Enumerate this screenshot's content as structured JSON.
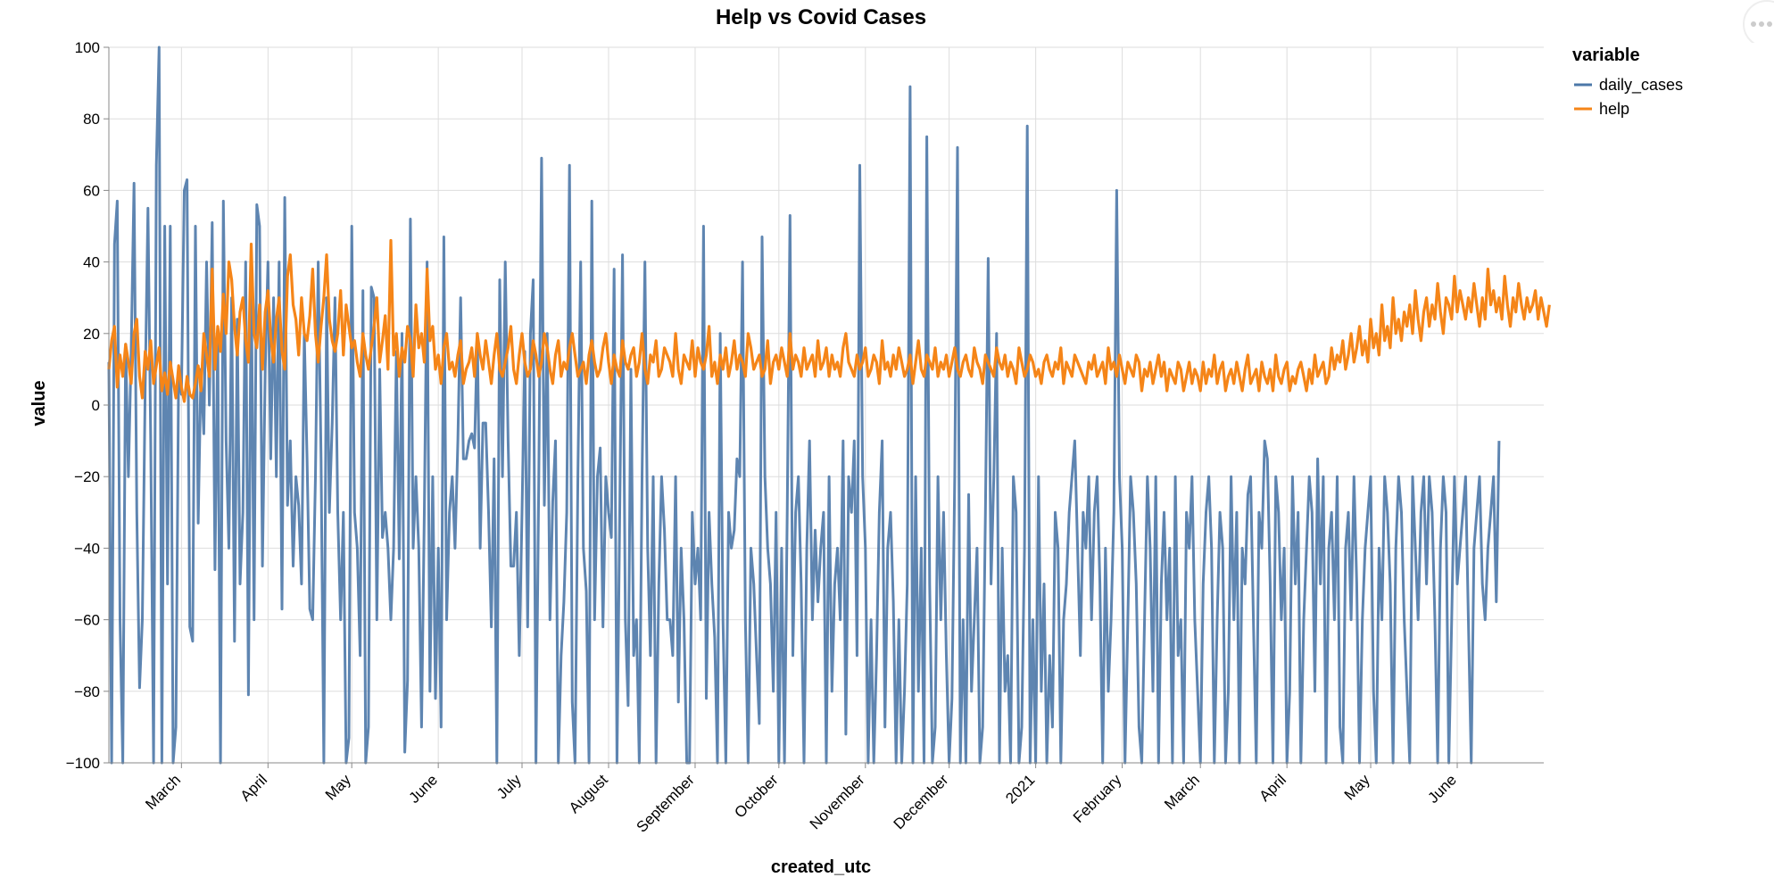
{
  "chart_data": {
    "type": "line",
    "title": "Help vs Covid Cases",
    "xlabel": "created_utc",
    "ylabel": "value",
    "ylim": [
      -100,
      100
    ],
    "yticks": [
      -100,
      -80,
      -60,
      -40,
      -20,
      0,
      20,
      40,
      60,
      80,
      100
    ],
    "xlim": [
      "2020-02-04",
      "2021-07-02"
    ],
    "xticks": [
      {
        "date": "2020-03-01",
        "label": "March"
      },
      {
        "date": "2020-04-01",
        "label": "April"
      },
      {
        "date": "2020-05-01",
        "label": "May"
      },
      {
        "date": "2020-06-01",
        "label": "June"
      },
      {
        "date": "2020-07-01",
        "label": "July"
      },
      {
        "date": "2020-08-01",
        "label": "August"
      },
      {
        "date": "2020-09-01",
        "label": "September"
      },
      {
        "date": "2020-10-01",
        "label": "October"
      },
      {
        "date": "2020-11-01",
        "label": "November"
      },
      {
        "date": "2020-12-01",
        "label": "December"
      },
      {
        "date": "2021-01-01",
        "label": "2021"
      },
      {
        "date": "2021-02-01",
        "label": "February"
      },
      {
        "date": "2021-03-01",
        "label": "March"
      },
      {
        "date": "2021-04-01",
        "label": "April"
      },
      {
        "date": "2021-05-01",
        "label": "May"
      },
      {
        "date": "2021-06-01",
        "label": "June"
      }
    ],
    "grid": true,
    "legend": {
      "title": "variable",
      "placement": "top-right"
    },
    "series": [
      {
        "name": "daily_cases",
        "color": "#4c78a8",
        "start": "2020-02-04",
        "step_days": 1,
        "values": [
          12,
          -100,
          45,
          57,
          -60,
          -100,
          17,
          -20,
          15,
          62,
          -30,
          -79,
          -60,
          5,
          55,
          -10,
          -100,
          67,
          100,
          -100,
          50,
          -50,
          50,
          -100,
          -90,
          10,
          3,
          60,
          63,
          -62,
          -66,
          50,
          -33,
          10,
          -8,
          40,
          0,
          51,
          -46,
          20,
          -100,
          57,
          -10,
          -40,
          30,
          -66,
          24,
          -50,
          -30,
          40,
          -81,
          40,
          -60,
          56,
          50,
          -45,
          10,
          40,
          -15,
          30,
          -20,
          40,
          -57,
          58,
          -28,
          -10,
          -45,
          -20,
          -28,
          -50,
          20,
          -15,
          -57,
          -60,
          -20,
          40,
          -15,
          -100,
          30,
          -30,
          -5,
          30,
          -30,
          -60,
          -30,
          -100,
          -93,
          50,
          -30,
          -40,
          -70,
          32,
          -100,
          -90,
          33,
          30,
          -60,
          10,
          -37,
          -30,
          -40,
          -60,
          -40,
          15,
          -43,
          20,
          -97,
          -77,
          52,
          -40,
          -20,
          -40,
          -90,
          -30,
          40,
          -80,
          -20,
          -82,
          -40,
          -90,
          47,
          -60,
          -30,
          -20,
          -40,
          -10,
          30,
          -15,
          -15,
          -10,
          -8,
          -12,
          20,
          -40,
          -5,
          -5,
          -30,
          -62,
          -15,
          -100,
          35,
          -20,
          40,
          -10,
          -45,
          -45,
          -30,
          -70,
          -30,
          15,
          -62,
          20,
          35,
          -100,
          -20,
          69,
          -28,
          20,
          -60,
          -27,
          -10,
          -100,
          -70,
          -55,
          -30,
          67,
          -83,
          -100,
          -20,
          40,
          -40,
          -52,
          -100,
          57,
          -60,
          -20,
          -12,
          -62,
          -20,
          -30,
          -37,
          38,
          -100,
          -30,
          42,
          -60,
          -84,
          10,
          -70,
          -60,
          -100,
          -20,
          40,
          -40,
          -70,
          -20,
          -100,
          -50,
          -20,
          -35,
          -60,
          -60,
          -70,
          -20,
          -83,
          -40,
          -60,
          -100,
          -100,
          -30,
          -50,
          -40,
          -60,
          50,
          -82,
          -30,
          -50,
          -65,
          -100,
          20,
          -60,
          -100,
          -30,
          -40,
          -35,
          -15,
          -20,
          40,
          -60,
          -100,
          -40,
          -50,
          -70,
          -89,
          47,
          -20,
          -40,
          -50,
          -80,
          -30,
          -100,
          -40,
          -100,
          -30,
          53,
          -70,
          -30,
          -20,
          -50,
          -100,
          -40,
          -10,
          -60,
          -35,
          -55,
          -40,
          -30,
          -100,
          -20,
          -80,
          -50,
          -40,
          -60,
          -10,
          -92,
          -20,
          -30,
          -10,
          -70,
          67,
          -20,
          -40,
          -100,
          -60,
          -100,
          -70,
          -30,
          -10,
          -90,
          -40,
          -30,
          -55,
          -100,
          -60,
          -100,
          -80,
          -50,
          89,
          -100,
          -20,
          -80,
          -40,
          -100,
          75,
          -50,
          -100,
          -90,
          -20,
          -60,
          -30,
          -70,
          -100,
          -82,
          -20,
          72,
          -100,
          -60,
          -100,
          -25,
          -80,
          -60,
          -40,
          -100,
          -90,
          -30,
          41,
          -50,
          -20,
          20,
          -100,
          -40,
          -80,
          -70,
          -100,
          -20,
          -30,
          -100,
          -90,
          -40,
          78,
          -100,
          -60,
          -100,
          -20,
          -80,
          -50,
          -100,
          -70,
          -90,
          -30,
          -40,
          -100,
          -60,
          -50,
          -30,
          -20,
          -10,
          -40,
          -70,
          -30,
          -40,
          -20,
          -60,
          -30,
          -20,
          -50,
          -100,
          -40,
          -80,
          -60,
          -30,
          60,
          -20,
          -40,
          -100,
          -60,
          -20,
          -30,
          -50,
          -90,
          -100,
          -60,
          -20,
          -40,
          -80,
          -20,
          -100,
          -50,
          -30,
          -60,
          -40,
          -100,
          -20,
          -70,
          -60,
          -100,
          -30,
          -40,
          -20,
          -60,
          -80,
          -100,
          -50,
          -30,
          -20,
          -40,
          -100,
          -60,
          -30,
          -40,
          -100,
          -80,
          -20,
          -60,
          -30,
          -100,
          -40,
          -50,
          -25,
          -20,
          -60,
          -100,
          -30,
          -40,
          -10,
          -15,
          -50,
          -100,
          -20,
          -30,
          -60,
          -40,
          -100,
          -80,
          -20,
          -50,
          -30,
          -100,
          -60,
          -40,
          -20,
          -30,
          -80,
          -15,
          -50,
          -20,
          -100,
          -40,
          -30,
          -60,
          -20,
          -90,
          -100,
          -40,
          -30,
          -60,
          -20,
          -50,
          -100,
          -60,
          -40,
          -30,
          -20,
          -80,
          -100,
          -40,
          -60,
          -20,
          -30,
          -50,
          -100,
          -40,
          -20,
          -30,
          -60,
          -80,
          -100,
          -20,
          -40,
          -60,
          -30,
          -20,
          -50,
          -20,
          -30,
          -60,
          -100,
          -40,
          -20,
          -30,
          -100,
          -60,
          -20,
          -50,
          -40,
          -30,
          -20,
          -60,
          -100,
          -40,
          -30,
          -20,
          -50,
          -60,
          -40,
          -30,
          -20,
          -55,
          -10
        ]
      },
      {
        "name": "help",
        "color": "#f58518",
        "start": "2020-02-04",
        "step_days": 1,
        "values": [
          10,
          18,
          22,
          5,
          14,
          8,
          17,
          12,
          6,
          20,
          24,
          8,
          2,
          15,
          10,
          18,
          6,
          11,
          16,
          4,
          9,
          3,
          12,
          7,
          2,
          11,
          5,
          1,
          8,
          3,
          2,
          6,
          11,
          4,
          20,
          14,
          8,
          38,
          10,
          22,
          15,
          31,
          20,
          40,
          35,
          22,
          14,
          26,
          30,
          18,
          12,
          45,
          20,
          16,
          28,
          10,
          26,
          32,
          19,
          12,
          24,
          30,
          15,
          10,
          36,
          42,
          28,
          24,
          14,
          30,
          20,
          18,
          25,
          38,
          20,
          12,
          22,
          30,
          42,
          24,
          18,
          15,
          20,
          32,
          14,
          28,
          22,
          16,
          18,
          12,
          8,
          20,
          14,
          10,
          16,
          22,
          30,
          12,
          18,
          25,
          10,
          46,
          14,
          20,
          8,
          16,
          12,
          22,
          18,
          8,
          28,
          16,
          20,
          12,
          38,
          18,
          22,
          10,
          14,
          6,
          16,
          20,
          10,
          12,
          8,
          14,
          18,
          6,
          10,
          12,
          16,
          8,
          20,
          14,
          10,
          18,
          12,
          6,
          14,
          20,
          10,
          8,
          12,
          16,
          22,
          10,
          6,
          14,
          20,
          12,
          8,
          10,
          18,
          14,
          8,
          12,
          20,
          16,
          10,
          6,
          14,
          18,
          8,
          12,
          10,
          16,
          20,
          14,
          8,
          10,
          12,
          6,
          14,
          18,
          12,
          8,
          10,
          16,
          20,
          12,
          6,
          14,
          10,
          8,
          18,
          12,
          10,
          14,
          16,
          8,
          12,
          20,
          10,
          6,
          14,
          12,
          18,
          8,
          10,
          16,
          14,
          12,
          8,
          20,
          10,
          6,
          14,
          12,
          10,
          18,
          8,
          16,
          12,
          10,
          14,
          22,
          8,
          12,
          6,
          14,
          10,
          16,
          8,
          12,
          18,
          10,
          14,
          12,
          8,
          20,
          16,
          10,
          12,
          14,
          8,
          10,
          18,
          6,
          12,
          14,
          10,
          16,
          12,
          8,
          20,
          10,
          14,
          12,
          8,
          16,
          10,
          12,
          14,
          8,
          18,
          10,
          12,
          16,
          8,
          14,
          10,
          12,
          8,
          16,
          20,
          12,
          10,
          8,
          14,
          10,
          12,
          16,
          8,
          10,
          14,
          12,
          6,
          18,
          10,
          12,
          8,
          14,
          10,
          16,
          12,
          8,
          10,
          14,
          6,
          12,
          18,
          10,
          8,
          14,
          12,
          10,
          16,
          8,
          12,
          10,
          14,
          8,
          12,
          16,
          10,
          8,
          12,
          14,
          10,
          8,
          16,
          12,
          10,
          6,
          14,
          12,
          10,
          8,
          16,
          12,
          10,
          14,
          8,
          12,
          10,
          6,
          16,
          12,
          8,
          10,
          14,
          12,
          8,
          10,
          6,
          12,
          14,
          10,
          8,
          12,
          10,
          16,
          6,
          12,
          10,
          8,
          14,
          12,
          10,
          8,
          6,
          12,
          10,
          14,
          8,
          10,
          12,
          6,
          16,
          10,
          12,
          8,
          14,
          10,
          6,
          12,
          10,
          8,
          14,
          12,
          4,
          10,
          8,
          12,
          6,
          10,
          14,
          8,
          12,
          4,
          10,
          8,
          6,
          12,
          10,
          4,
          8,
          12,
          6,
          10,
          8,
          4,
          12,
          6,
          10,
          8,
          14,
          6,
          10,
          12,
          4,
          8,
          10,
          6,
          12,
          8,
          4,
          10,
          14,
          6,
          8,
          10,
          4,
          12,
          8,
          6,
          10,
          4,
          14,
          8,
          6,
          10,
          12,
          4,
          8,
          6,
          10,
          12,
          8,
          4,
          10,
          6,
          14,
          8,
          10,
          12,
          6,
          8,
          16,
          10,
          14,
          12,
          18,
          10,
          14,
          20,
          12,
          16,
          22,
          14,
          18,
          12,
          24,
          16,
          20,
          14,
          28,
          18,
          22,
          16,
          30,
          20,
          24,
          18,
          26,
          22,
          28,
          20,
          32,
          24,
          18,
          26,
          30,
          22,
          28,
          24,
          34,
          26,
          20,
          30,
          28,
          24,
          36,
          26,
          32,
          28,
          24,
          30,
          26,
          34,
          28,
          22,
          30,
          24,
          38,
          28,
          32,
          26,
          30,
          24,
          36,
          28,
          22,
          30,
          26,
          34,
          28,
          24,
          30,
          26,
          28,
          32,
          24,
          30,
          26,
          22,
          28
        ]
      }
    ]
  },
  "ui": {
    "menu_icon": "ellipsis-icon"
  }
}
